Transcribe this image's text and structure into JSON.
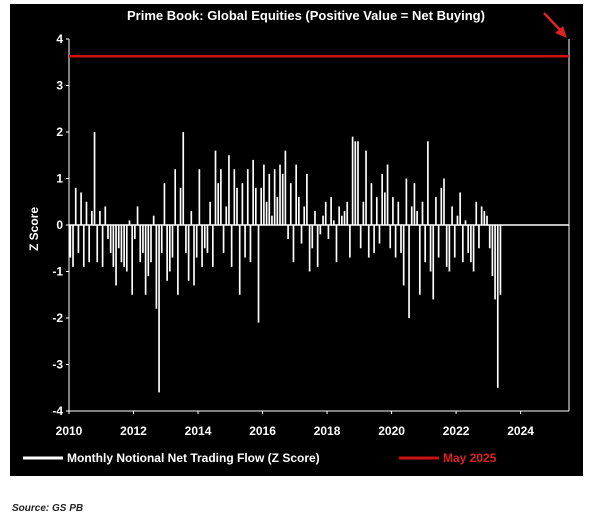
{
  "chart_data": {
    "type": "bar",
    "title": "Prime Book: Global Equities (Positive Value = Net Buying)",
    "ylabel": "Z Score",
    "xlabel": "",
    "ylim": [
      -4,
      4
    ],
    "yticks": [
      "4",
      "3",
      "2",
      "1",
      "0",
      "-1",
      "-2",
      "-3",
      "-4"
    ],
    "xlim": [
      2010.0,
      2025.5
    ],
    "xticks": [
      {
        "value": 2010,
        "label": "2010"
      },
      {
        "value": 2012,
        "label": "2012"
      },
      {
        "value": 2014,
        "label": "2014"
      },
      {
        "value": 2016,
        "label": "2016"
      },
      {
        "value": 2018,
        "label": "2018"
      },
      {
        "value": 2020,
        "label": "2020"
      },
      {
        "value": 2022,
        "label": "2022"
      },
      {
        "value": 2024,
        "label": "2024"
      }
    ],
    "grid": false,
    "legend_placement": "bottom",
    "series": [
      {
        "name": "Monthly Notional Net Trading Flow (Z Score)",
        "color": "#ffffff",
        "start": "2010-01",
        "values": [
          -0.7,
          -0.9,
          0.8,
          -0.6,
          0.7,
          -0.9,
          0.5,
          -0.8,
          0.3,
          2.0,
          -0.8,
          0.3,
          -0.9,
          0.4,
          -0.3,
          -0.6,
          -0.9,
          -1.3,
          -0.5,
          -0.8,
          -0.9,
          -1.0,
          0.1,
          -1.5,
          -0.3,
          0.4,
          -0.8,
          -0.6,
          -1.5,
          -1.1,
          -0.8,
          0.2,
          -1.8,
          -3.6,
          -0.6,
          0.9,
          -1.2,
          -1.0,
          -0.7,
          1.2,
          -1.5,
          0.8,
          2.0,
          -0.6,
          -1.2,
          0.3,
          -1.3,
          -0.7,
          1.2,
          -0.9,
          -0.5,
          -0.6,
          0.5,
          -0.9,
          1.6,
          0.9,
          1.2,
          -0.6,
          0.4,
          1.5,
          -0.9,
          1.2,
          0.8,
          -1.5,
          0.9,
          -0.7,
          1.2,
          -0.8,
          1.4,
          0.8,
          -2.1,
          0.8,
          1.3,
          0.5,
          1.1,
          0.2,
          1.2,
          0.6,
          1.3,
          1.1,
          1.6,
          -0.3,
          0.9,
          -0.8,
          1.3,
          0.6,
          -0.4,
          0.4,
          1.1,
          -1.0,
          -0.5,
          0.3,
          -0.9,
          -0.2,
          0.2,
          0.5,
          -0.3,
          0.6,
          0.1,
          -0.8,
          0.4,
          0.2,
          0.3,
          0.5,
          -0.7,
          1.9,
          1.8,
          1.8,
          -0.5,
          0.5,
          1.6,
          -0.7,
          0.9,
          -0.6,
          0.6,
          -0.4,
          1.1,
          0.7,
          1.3,
          -0.5,
          0.6,
          -0.7,
          0.5,
          -0.6,
          -1.3,
          1.0,
          -2.0,
          0.4,
          0.9,
          0.3,
          -1.5,
          0.5,
          -0.8,
          1.8,
          -1.0,
          -1.6,
          0.6,
          -0.7,
          0.8,
          1.0,
          -0.9,
          -1.0,
          0.4,
          -0.7,
          0.2,
          0.7,
          -0.8,
          0.1,
          -0.6,
          -0.8,
          -1.0,
          0.5,
          -0.5,
          0.4,
          0.3,
          0.2,
          -0.5,
          -1.1,
          -1.6,
          -3.5,
          -1.5
        ]
      }
    ],
    "reference_lines": [
      {
        "name": "May 2025",
        "y": 3.63,
        "color": "#cc1111"
      }
    ],
    "source": "Source: GS PB"
  },
  "annotations": {
    "arrow_color": "#dd2222"
  }
}
